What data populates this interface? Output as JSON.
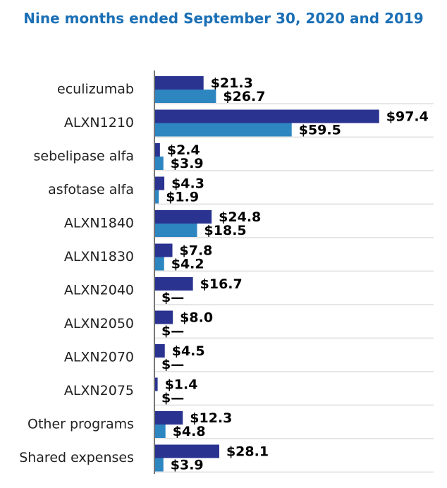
{
  "chart_data": {
    "type": "hbar",
    "title": "Nine months ended September 30, 2020 and 2019",
    "categories": [
      "eculizumab",
      "ALXN1210",
      "sebelipase alfa",
      "asfotase alfa",
      "ALXN1840",
      "ALXN1830",
      "ALXN2040",
      "ALXN2050",
      "ALXN2070",
      "ALXN2075",
      "Other programs",
      "Shared expenses"
    ],
    "series": [
      {
        "color": "#2a3390",
        "values": [
          21.3,
          97.4,
          2.4,
          4.3,
          24.8,
          7.8,
          16.7,
          8.0,
          4.5,
          1.4,
          12.3,
          28.1
        ],
        "value_labels": [
          "$21.3",
          "$97.4",
          "$2.4",
          "$4.3",
          "$24.8",
          "$7.8",
          "$16.7",
          "$8.0",
          "$4.5",
          "$1.4",
          "$12.3",
          "$28.1"
        ]
      },
      {
        "color": "#2e86c1",
        "values": [
          26.7,
          59.5,
          3.9,
          1.9,
          18.5,
          4.2,
          0,
          0,
          0,
          0,
          4.8,
          3.9
        ],
        "value_labels": [
          "$26.7",
          "$59.5",
          "$3.9",
          "$1.9",
          "$18.5",
          "$4.2",
          "$—",
          "$—",
          "$—",
          "$—",
          "$4.8",
          "$3.9"
        ]
      }
    ],
    "xlim": [
      0,
      121
    ]
  }
}
